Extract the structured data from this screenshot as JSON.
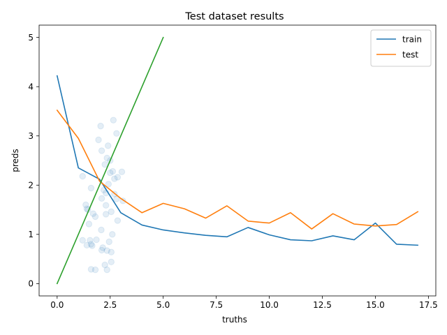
{
  "chart_data": {
    "type": "line",
    "title": "Test dataset results",
    "xlabel": "truths",
    "ylabel": "preds",
    "xlim": [
      -0.85,
      17.85
    ],
    "ylim": [
      -0.25,
      5.25
    ],
    "xticks": [
      0.0,
      2.5,
      5.0,
      7.5,
      10.0,
      12.5,
      15.0,
      17.5
    ],
    "xtick_labels": [
      "0.0",
      "2.5",
      "5.0",
      "7.5",
      "10.0",
      "12.5",
      "15.0",
      "17.5"
    ],
    "yticks": [
      0,
      1,
      2,
      3,
      4,
      5
    ],
    "ytick_labels": [
      "0",
      "1",
      "2",
      "3",
      "4",
      "5"
    ],
    "grid": false,
    "legend_position": "top-right",
    "series": [
      {
        "name": "train",
        "color": "#1f77b4",
        "x": [
          0,
          1,
          2,
          3,
          4,
          5,
          6,
          7,
          8,
          9,
          10,
          11,
          12,
          13,
          14,
          15,
          16,
          17
        ],
        "y": [
          4.22,
          2.35,
          2.12,
          1.44,
          1.19,
          1.09,
          1.03,
          0.98,
          0.95,
          1.14,
          0.99,
          0.89,
          0.87,
          0.97,
          0.89,
          1.23,
          0.8,
          0.78
        ]
      },
      {
        "name": "test",
        "color": "#ff7f0e",
        "x": [
          0,
          1,
          2,
          3,
          4,
          5,
          6,
          7,
          8,
          9,
          10,
          11,
          12,
          13,
          14,
          15,
          16,
          17
        ],
        "y": [
          3.52,
          2.95,
          2.08,
          1.73,
          1.44,
          1.63,
          1.52,
          1.33,
          1.58,
          1.27,
          1.23,
          1.44,
          1.11,
          1.42,
          1.21,
          1.17,
          1.2,
          1.46
        ]
      },
      {
        "name": "",
        "color": "#2ca02c",
        "x": [
          0,
          5
        ],
        "y": [
          0,
          5
        ]
      }
    ],
    "scatter": {
      "color": "#1f77b4",
      "opacity": 0.12,
      "points": [
        [
          2.65,
          3.32
        ],
        [
          2.05,
          3.2
        ],
        [
          2.8,
          3.05
        ],
        [
          1.95,
          2.92
        ],
        [
          2.4,
          2.8
        ],
        [
          2.1,
          2.7
        ],
        [
          2.35,
          2.55
        ],
        [
          2.5,
          2.5
        ],
        [
          2.25,
          2.42
        ],
        [
          3.05,
          2.27
        ],
        [
          2.62,
          2.28
        ],
        [
          2.5,
          2.25
        ],
        [
          1.2,
          2.18
        ],
        [
          2.85,
          2.16
        ],
        [
          2.7,
          2.13
        ],
        [
          2.42,
          2.02
        ],
        [
          1.6,
          1.94
        ],
        [
          2.2,
          1.9
        ],
        [
          2.3,
          1.84
        ],
        [
          2.7,
          1.82
        ],
        [
          2.1,
          1.73
        ],
        [
          2.8,
          1.72
        ],
        [
          3.1,
          1.68
        ],
        [
          1.35,
          1.6
        ],
        [
          2.3,
          1.59
        ],
        [
          1.4,
          1.52
        ],
        [
          2.55,
          1.46
        ],
        [
          1.45,
          1.5
        ],
        [
          1.7,
          1.42
        ],
        [
          2.3,
          1.41
        ],
        [
          1.8,
          1.36
        ],
        [
          2.85,
          1.28
        ],
        [
          1.5,
          1.21
        ],
        [
          2.08,
          1.09
        ],
        [
          2.6,
          1.0
        ],
        [
          1.2,
          0.88
        ],
        [
          1.55,
          0.88
        ],
        [
          1.85,
          0.89
        ],
        [
          2.45,
          0.85
        ],
        [
          1.6,
          0.8
        ],
        [
          1.4,
          0.78
        ],
        [
          1.65,
          0.77
        ],
        [
          2.15,
          0.73
        ],
        [
          2.1,
          0.68
        ],
        [
          2.35,
          0.67
        ],
        [
          2.55,
          0.64
        ],
        [
          2.55,
          0.44
        ],
        [
          2.25,
          0.38
        ],
        [
          1.6,
          0.29
        ],
        [
          1.8,
          0.28
        ],
        [
          2.35,
          0.28
        ]
      ]
    }
  }
}
